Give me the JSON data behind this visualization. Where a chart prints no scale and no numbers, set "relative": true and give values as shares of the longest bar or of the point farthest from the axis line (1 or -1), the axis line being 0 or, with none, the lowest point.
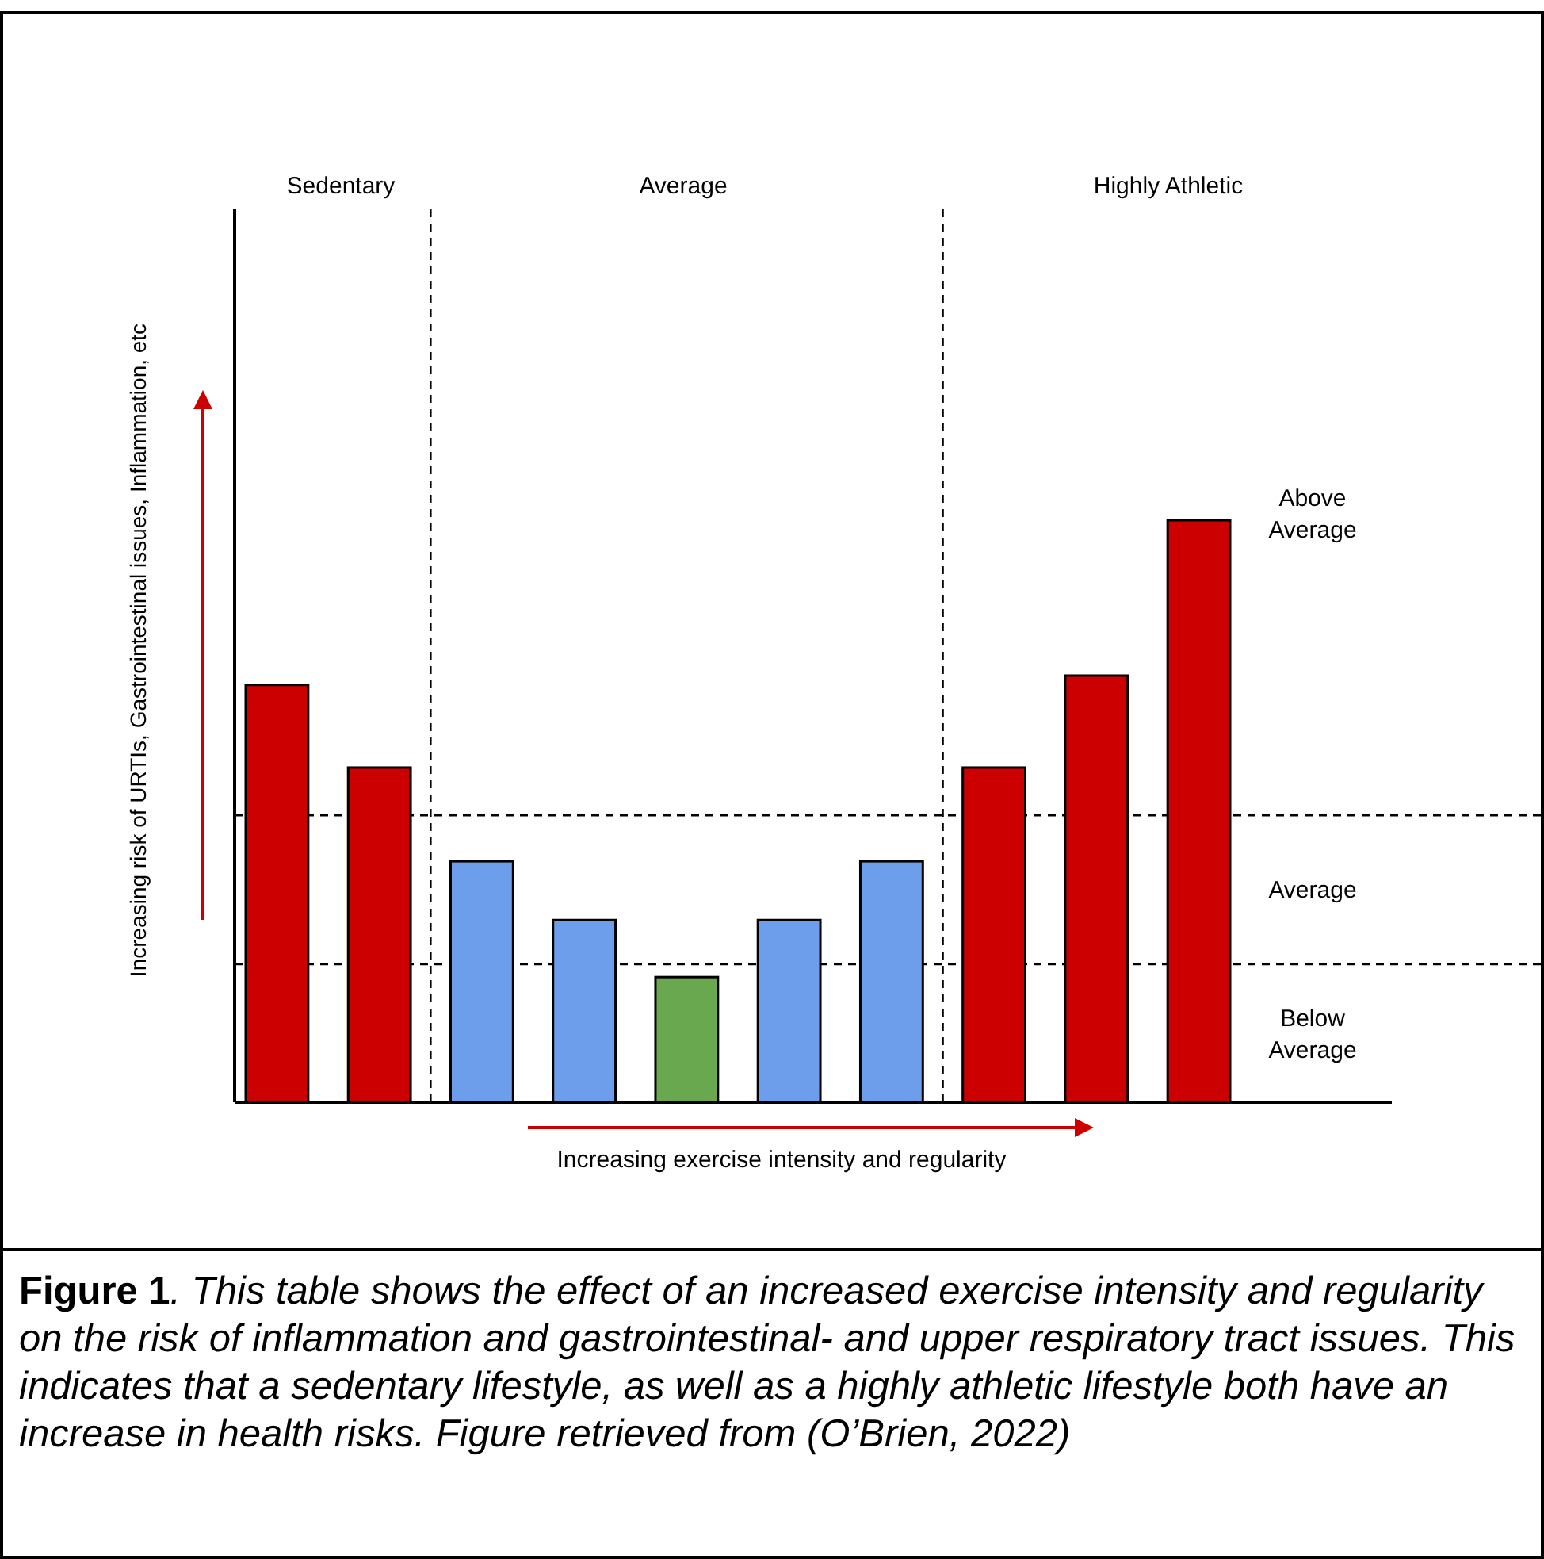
{
  "chart_data": {
    "type": "bar",
    "relative": true,
    "xlabel": "Increasing exercise intensity and regularity",
    "ylabel": "Increasing risk of URTIs, Gastrointestinal issues, Inflammation, etc",
    "categories": [
      null,
      null,
      null,
      null,
      null,
      null,
      null,
      null,
      null,
      null
    ],
    "values": [
      0.717,
      0.575,
      0.414,
      0.313,
      0.215,
      0.313,
      0.414,
      0.575,
      0.733,
      1
    ],
    "colors": [
      "#cc0000",
      "#cc0000",
      "#6d9eeb",
      "#6d9eeb",
      "#6aa84f",
      "#6d9eeb",
      "#6d9eeb",
      "#cc0000",
      "#cc0000",
      "#cc0000"
    ],
    "ref_lines": [
      {
        "axis": "y",
        "value": 0.493,
        "line_style": "dashed"
      },
      {
        "axis": "y",
        "value": 0.237,
        "line_style": "dashed"
      }
    ],
    "annotations": [
      "Sedentary",
      "Average",
      "Highly Athletic",
      "Above Average",
      "Average",
      "Below Average",
      "Figure 1",
      ". This table shows the effect of an increased exercise intensity and regularity on the risk of inflammation and gastrointestinal- and upper respiratory tract issues. This indicates that a sedentary lifestyle, as well as a highly athletic lifestyle both have an increase in health risks. Figure retrieved from (O’Brien, 2022)"
    ],
    "legend": false
  }
}
